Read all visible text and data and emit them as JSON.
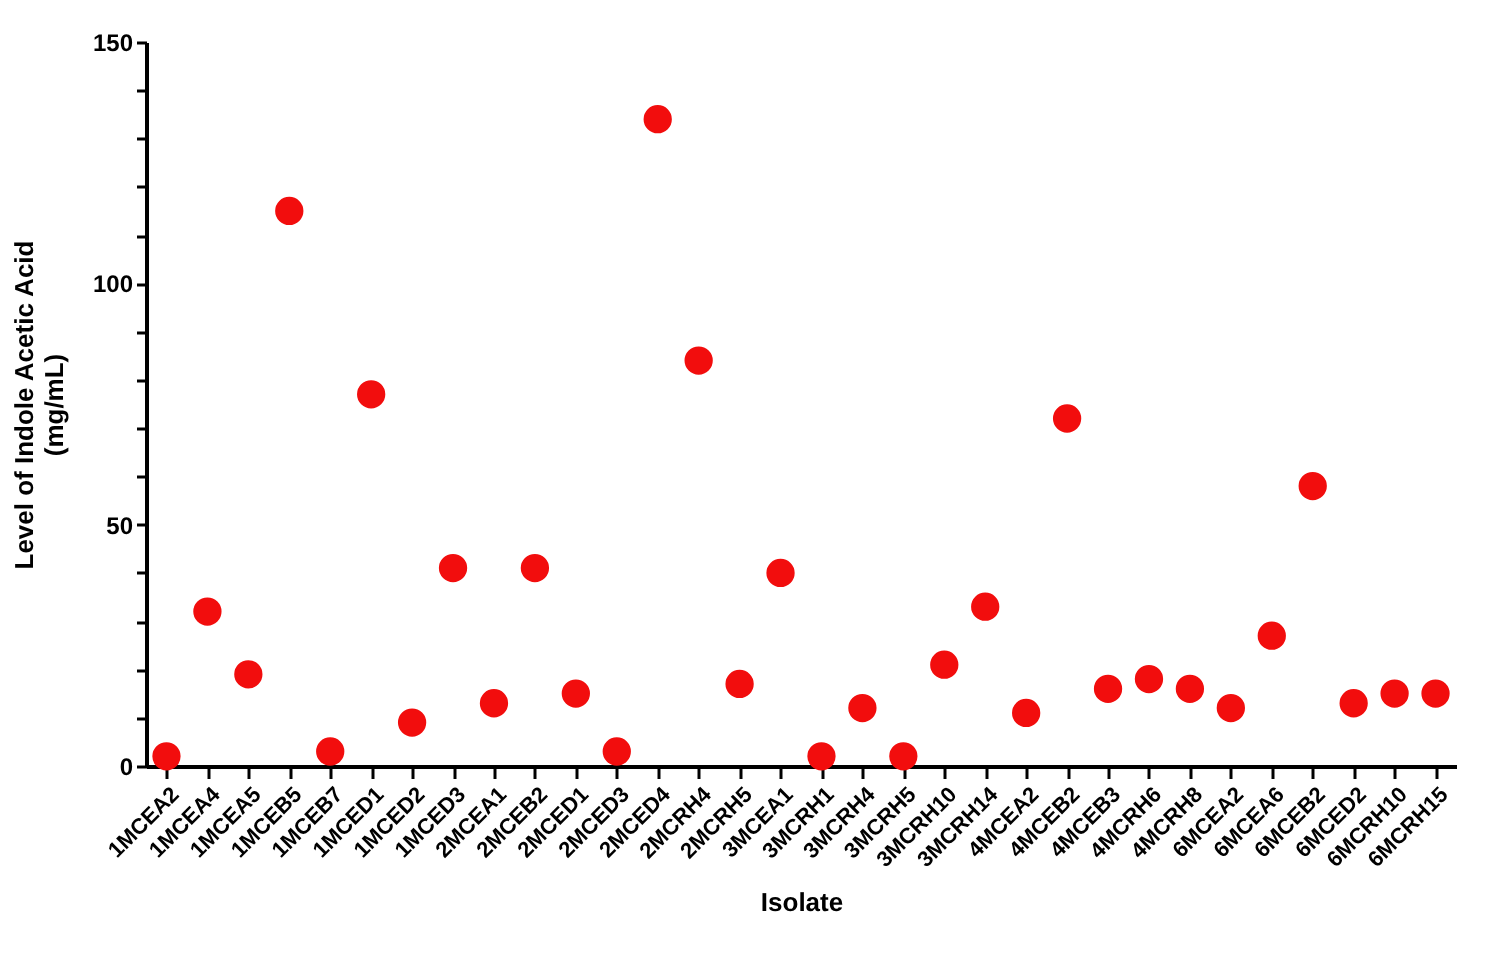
{
  "chart_data": {
    "type": "scatter",
    "xlabel": "Isolate",
    "ylabel": "Level of Indole Acetic Acid (mg/mL)",
    "categories": [
      "1MCEA2",
      "1MCEA4",
      "1MCEA5",
      "1MCEB5",
      "1MCEB7",
      "1MCED1",
      "1MCED2",
      "1MCED3",
      "2MCEA1",
      "2MCEB2",
      "2MCED1",
      "2MCED3",
      "2MCED4",
      "2MCRH4",
      "2MCRH5",
      "3MCEA1",
      "3MCRH1",
      "3MCRH4",
      "3MCRH5",
      "3MCRH10",
      "3MCRH14",
      "4MCEA2",
      "4MCEB2",
      "4MCEB3",
      "4MCRH6",
      "4MCRH8",
      "6MCEA2",
      "6MCEA6",
      "6MCEB2",
      "6MCED2",
      "6MCRH10",
      "6MCRH15"
    ],
    "series": [
      {
        "color": "#f20d0d",
        "values": [
          2,
          32,
          19,
          115,
          3,
          77,
          9,
          41,
          13,
          41,
          15,
          3,
          134,
          84,
          17,
          40,
          2,
          12,
          2,
          21,
          33,
          11,
          72,
          16,
          18,
          16,
          12,
          27,
          58,
          13,
          15,
          15
        ]
      }
    ],
    "ylim": [
      0,
      150
    ],
    "yticks": [
      0,
      {
        "value": 10,
        "label": null
      },
      {
        "value": 20,
        "label": null
      },
      {
        "value": 30,
        "label": null
      },
      {
        "value": 40,
        "label": null
      },
      50,
      {
        "value": 60,
        "label": null
      },
      {
        "value": 70,
        "label": null
      },
      {
        "value": 80,
        "label": null
      },
      {
        "value": 90,
        "label": null
      },
      100,
      {
        "value": 110,
        "label": null
      },
      {
        "value": 120,
        "label": null
      },
      {
        "value": 130,
        "label": null
      },
      {
        "value": 140,
        "label": null
      },
      150
    ],
    "grid": false,
    "legend": false,
    "marker": "circle"
  }
}
